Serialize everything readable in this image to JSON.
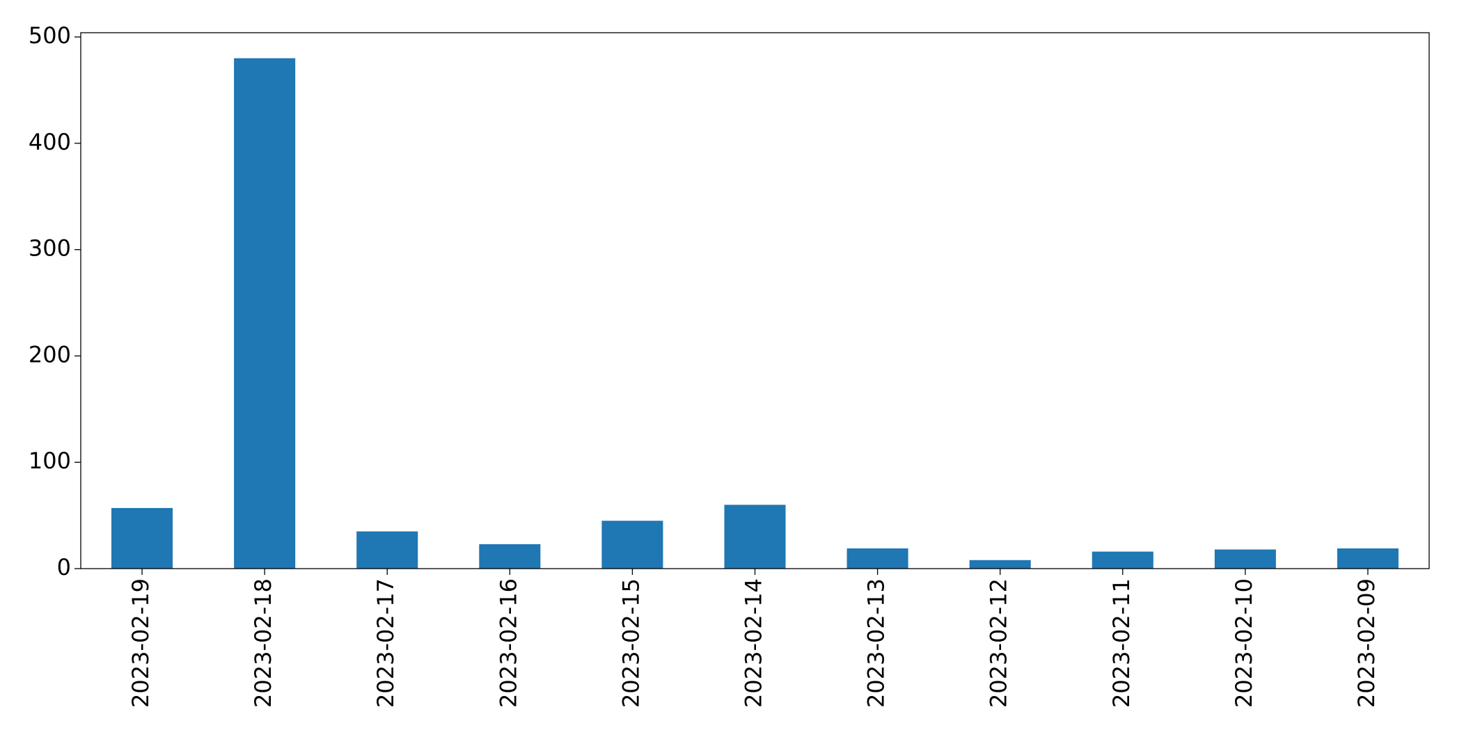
{
  "chart_data": {
    "type": "bar",
    "categories": [
      "2023-02-19",
      "2023-02-18",
      "2023-02-17",
      "2023-02-16",
      "2023-02-15",
      "2023-02-14",
      "2023-02-13",
      "2023-02-12",
      "2023-02-11",
      "2023-02-10",
      "2023-02-09"
    ],
    "values": [
      57,
      480,
      35,
      23,
      45,
      60,
      19,
      8,
      16,
      18,
      19
    ],
    "color": "#1f77b4",
    "ylim": [
      0,
      504
    ],
    "yticks": [
      0,
      100,
      200,
      300,
      400,
      500
    ],
    "grid": false
  }
}
